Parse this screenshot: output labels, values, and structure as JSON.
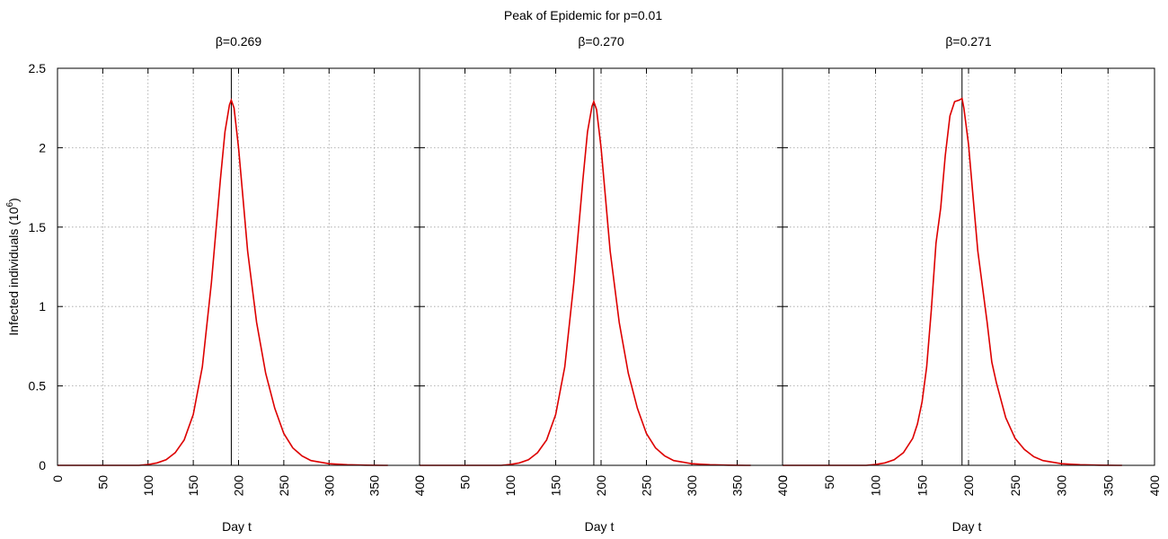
{
  "page_title": "Peak of Epidemic for p=0.01",
  "ylabel_main": "Infected individuals (10",
  "ylabel_exp": "6",
  "ylabel_close": ")",
  "colors": {
    "curve": "#dd0000",
    "peak_line": "#000000",
    "grid": "#a0a0a0"
  },
  "chart_data": [
    {
      "type": "line",
      "title": "β=0.269",
      "xlabel": "Day t",
      "ylabel": "Infected individuals (10^6)",
      "xlim": [
        0,
        400
      ],
      "ylim": [
        0,
        2.5
      ],
      "xticks": [
        0,
        50,
        100,
        150,
        200,
        250,
        300,
        350,
        400
      ],
      "yticks": [
        0,
        0.5,
        1,
        1.5,
        2,
        2.5
      ],
      "grid": true,
      "peak_day": 192,
      "series": [
        {
          "color": "#dd0000",
          "x": [
            0,
            50,
            90,
            100,
            110,
            120,
            130,
            140,
            150,
            160,
            170,
            180,
            185,
            190,
            192,
            195,
            200,
            205,
            210,
            220,
            230,
            240,
            250,
            260,
            270,
            280,
            300,
            320,
            340,
            360,
            365
          ],
          "y": [
            0.0,
            0.0,
            0.0,
            0.005,
            0.015,
            0.035,
            0.08,
            0.16,
            0.32,
            0.62,
            1.15,
            1.8,
            2.1,
            2.27,
            2.3,
            2.25,
            2.0,
            1.68,
            1.35,
            0.9,
            0.58,
            0.36,
            0.2,
            0.11,
            0.06,
            0.03,
            0.01,
            0.004,
            0.001,
            0.0,
            0.0
          ]
        }
      ]
    },
    {
      "type": "line",
      "title": "β=0.270",
      "xlabel": "Day t",
      "ylabel": "",
      "xlim": [
        0,
        400
      ],
      "ylim": [
        0,
        2.5
      ],
      "xticks": [
        0,
        50,
        100,
        150,
        200,
        250,
        300,
        350,
        400
      ],
      "yticks": [
        0,
        0.5,
        1,
        1.5,
        2,
        2.5
      ],
      "grid": true,
      "peak_day": 192,
      "series": [
        {
          "color": "#dd0000",
          "x": [
            0,
            50,
            90,
            100,
            110,
            120,
            130,
            140,
            150,
            160,
            170,
            180,
            185,
            190,
            192,
            195,
            200,
            205,
            210,
            220,
            230,
            240,
            250,
            260,
            270,
            280,
            300,
            320,
            340,
            360,
            365
          ],
          "y": [
            0.0,
            0.0,
            0.0,
            0.005,
            0.015,
            0.035,
            0.08,
            0.16,
            0.32,
            0.62,
            1.15,
            1.8,
            2.1,
            2.26,
            2.29,
            2.24,
            2.0,
            1.68,
            1.35,
            0.9,
            0.58,
            0.36,
            0.2,
            0.11,
            0.06,
            0.03,
            0.01,
            0.004,
            0.001,
            0.0,
            0.0
          ]
        }
      ]
    },
    {
      "type": "line",
      "title": "β=0.271",
      "xlabel": "Day t",
      "ylabel": "",
      "xlim": [
        0,
        400
      ],
      "ylim": [
        0,
        2.5
      ],
      "xticks": [
        0,
        50,
        100,
        150,
        200,
        250,
        300,
        350,
        400
      ],
      "yticks": [
        0,
        0.5,
        1,
        1.5,
        2,
        2.5
      ],
      "grid": true,
      "peak_day": 193,
      "series": [
        {
          "color": "#dd0000",
          "x": [
            0,
            50,
            90,
            100,
            110,
            120,
            130,
            140,
            145,
            150,
            155,
            160,
            165,
            170,
            175,
            180,
            185,
            190,
            193,
            195,
            200,
            205,
            210,
            220,
            225,
            230,
            240,
            250,
            260,
            270,
            280,
            300,
            320,
            340,
            360,
            365
          ],
          "y": [
            0.0,
            0.0,
            0.0,
            0.005,
            0.015,
            0.035,
            0.08,
            0.17,
            0.26,
            0.4,
            0.62,
            0.98,
            1.4,
            1.62,
            1.95,
            2.2,
            2.29,
            2.3,
            2.31,
            2.25,
            2.02,
            1.68,
            1.35,
            0.9,
            0.65,
            0.52,
            0.3,
            0.17,
            0.1,
            0.055,
            0.03,
            0.01,
            0.004,
            0.001,
            0.0,
            0.0
          ]
        }
      ]
    }
  ]
}
